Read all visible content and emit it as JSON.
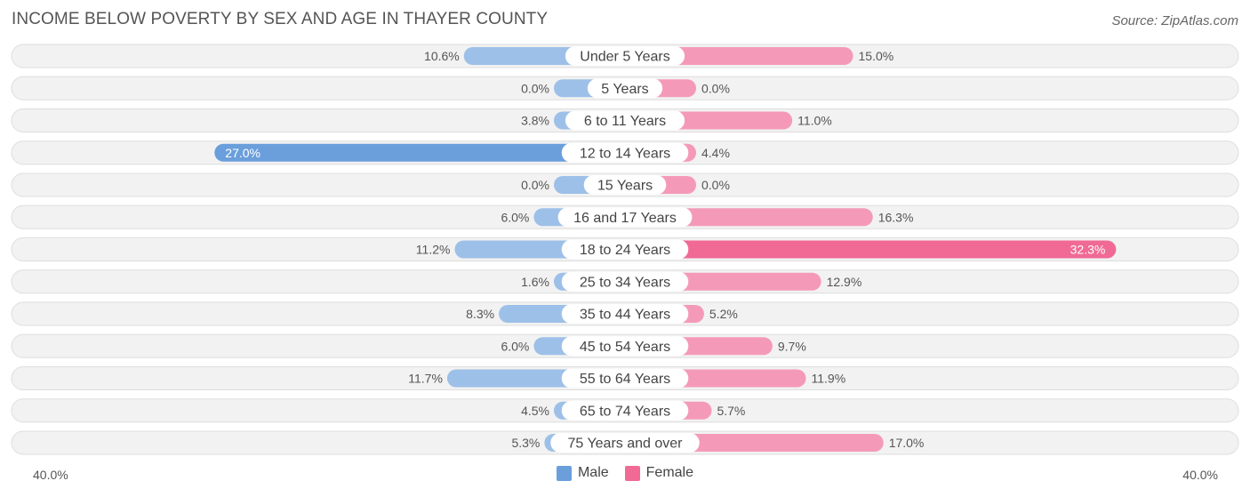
{
  "header": {
    "title": "INCOME BELOW POVERTY BY SEX AND AGE IN THAYER COUNTY",
    "source": "Source: ZipAtlas.com"
  },
  "axis": {
    "left_label": "40.0%",
    "right_label": "40.0%"
  },
  "legend": {
    "male_label": "Male",
    "female_label": "Female"
  },
  "colors": {
    "male": "#9dc0e8",
    "male_highlight": "#6a9fdc",
    "female": "#f49ab8",
    "female_highlight": "#f06a95"
  },
  "chart_data": {
    "type": "bar",
    "orientation": "horizontal-diverging",
    "title": "INCOME BELOW POVERTY BY SEX AND AGE IN THAYER COUNTY",
    "xlim": [
      -40,
      40
    ],
    "categories": [
      "Under 5 Years",
      "5 Years",
      "6 to 11 Years",
      "12 to 14 Years",
      "15 Years",
      "16 and 17 Years",
      "18 to 24 Years",
      "25 to 34 Years",
      "35 to 44 Years",
      "45 to 54 Years",
      "55 to 64 Years",
      "65 to 74 Years",
      "75 Years and over"
    ],
    "series": [
      {
        "name": "Male",
        "values": [
          10.6,
          0.0,
          3.8,
          27.0,
          0.0,
          6.0,
          11.2,
          1.6,
          8.3,
          6.0,
          11.7,
          4.5,
          5.3
        ],
        "labels": [
          "10.6%",
          "0.0%",
          "3.8%",
          "27.0%",
          "0.0%",
          "6.0%",
          "11.2%",
          "1.6%",
          "8.3%",
          "6.0%",
          "11.7%",
          "4.5%",
          "5.3%"
        ]
      },
      {
        "name": "Female",
        "values": [
          15.0,
          0.0,
          11.0,
          4.4,
          0.0,
          16.3,
          32.3,
          12.9,
          5.2,
          9.7,
          11.9,
          5.7,
          17.0
        ],
        "labels": [
          "15.0%",
          "0.0%",
          "11.0%",
          "4.4%",
          "0.0%",
          "16.3%",
          "32.3%",
          "12.9%",
          "5.2%",
          "9.7%",
          "11.9%",
          "5.7%",
          "17.0%"
        ]
      }
    ],
    "legend_position": "bottom-center"
  }
}
